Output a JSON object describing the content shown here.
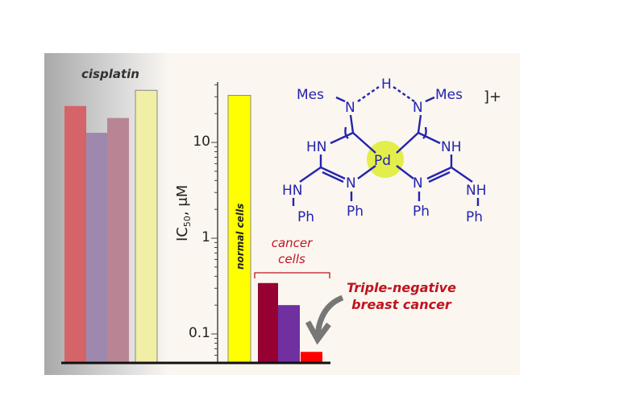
{
  "chart_data": {
    "type": "bar",
    "yscale": "log",
    "ylabel": "IC50, μM",
    "ylabel_main": "IC",
    "ylabel_sub": "50",
    "ylabel_unit": ", μM",
    "ylim": [
      0.05,
      40
    ],
    "yticks": [
      {
        "value": 10,
        "label": "10"
      },
      {
        "value": 1,
        "label": "1"
      },
      {
        "value": 0.1,
        "label": "0.1"
      }
    ],
    "groups": [
      {
        "name": "cisplatin",
        "label": "cisplatin",
        "values": [
          24,
          12.6,
          18,
          35
        ],
        "colors": [
          "#d46468",
          "#9e88ad",
          "#b98595",
          "#f1eea6"
        ]
      },
      {
        "name": "normal cells",
        "label": "normal cells",
        "values": [
          31
        ],
        "colors": [
          "#ffff00"
        ]
      },
      {
        "name": "cancer cells",
        "label_line1": "cancer",
        "label_line2": "cells",
        "values": [
          0.34,
          0.2,
          0.065
        ],
        "colors": [
          "#960032",
          "#7030a0",
          "#ff0000"
        ]
      }
    ],
    "annotations": {
      "tnbc_line1": "Triple-negative",
      "tnbc_line2": "breast cancer"
    }
  },
  "molecule": {
    "mes_left": "Mes",
    "mes_right": "Mes",
    "h": "H",
    "n_top_left": "N",
    "n_top_right": "N",
    "hn_left": "HN",
    "nh_right": "NH",
    "metal": "Pd",
    "n_bot_left": "N",
    "n_bot_right": "N",
    "hn_outer_left": "HN",
    "nh_outer_right": "NH",
    "ph1": "Ph",
    "ph2": "Ph",
    "ph3": "Ph",
    "ph4": "Ph",
    "charge": "]+",
    "accent": "#2424b0",
    "metal_highlight": "#e3ee4a"
  }
}
